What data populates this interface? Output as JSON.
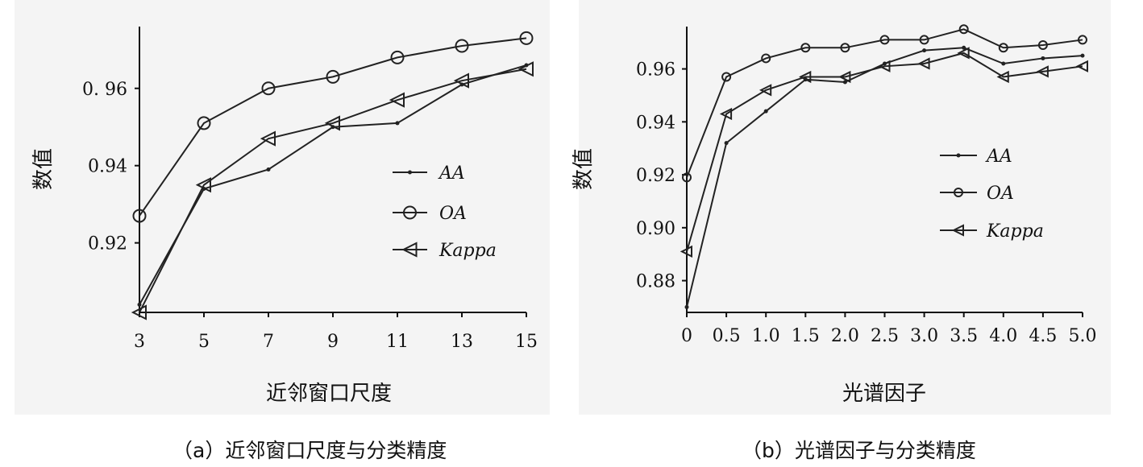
{
  "captions": {
    "a": "（a）近邻窗口尺度与分类精度",
    "b": "（b）光谱因子与分类精度"
  },
  "chart_data": [
    {
      "type": "line",
      "ylabel": "数值",
      "xlabel": "近邻窗口尺度",
      "categories": [
        "3",
        "5",
        "7",
        "9",
        "11",
        "13",
        "15"
      ],
      "x": [
        3,
        5,
        7,
        9,
        11,
        13,
        15
      ],
      "xlim": [
        3,
        15
      ],
      "ylim": [
        0.902,
        0.976
      ],
      "yticks": [
        0.92,
        0.94,
        0.96
      ],
      "ytick_labels": [
        "0.92",
        "0.94",
        "0. 96"
      ],
      "grid": false,
      "legend_position": "center-right",
      "series": [
        {
          "name": "AA",
          "marker": "dot",
          "values": [
            0.904,
            0.934,
            0.939,
            0.95,
            0.951,
            0.961,
            0.966
          ]
        },
        {
          "name": "OA",
          "marker": "circle",
          "values": [
            0.927,
            0.951,
            0.96,
            0.963,
            0.968,
            0.971,
            0.973
          ]
        },
        {
          "name": "Kappa",
          "marker": "triangle-left",
          "values": [
            0.902,
            0.935,
            0.947,
            0.951,
            0.957,
            0.962,
            0.965
          ]
        }
      ]
    },
    {
      "type": "line",
      "ylabel": "数值",
      "xlabel": "光谱因子",
      "categories": [
        "0",
        "0.5",
        "1.0",
        "1.5",
        "2.0",
        "2.5",
        "3.0",
        "3.5",
        "4.0",
        "4.5",
        "5.0"
      ],
      "x": [
        0,
        0.5,
        1.0,
        1.5,
        2.0,
        2.5,
        3.0,
        3.5,
        4.0,
        4.5,
        5.0
      ],
      "xlim": [
        0,
        5
      ],
      "ylim": [
        0.868,
        0.976
      ],
      "yticks": [
        0.88,
        0.9,
        0.92,
        0.94,
        0.96
      ],
      "ytick_labels": [
        "0.88",
        "0.90",
        "0.92",
        "0.94",
        "0.96"
      ],
      "grid": false,
      "legend_position": "center-right",
      "series": [
        {
          "name": "AA",
          "marker": "dot",
          "values": [
            0.87,
            0.932,
            0.944,
            0.956,
            0.955,
            0.962,
            0.967,
            0.968,
            0.962,
            0.964,
            0.965
          ]
        },
        {
          "name": "OA",
          "marker": "circle",
          "values": [
            0.919,
            0.957,
            0.964,
            0.968,
            0.968,
            0.971,
            0.971,
            0.975,
            0.968,
            0.969,
            0.971
          ]
        },
        {
          "name": "Kappa",
          "marker": "triangle-left",
          "values": [
            0.891,
            0.943,
            0.952,
            0.957,
            0.957,
            0.961,
            0.962,
            0.966,
            0.957,
            0.959,
            0.961
          ]
        }
      ]
    }
  ]
}
